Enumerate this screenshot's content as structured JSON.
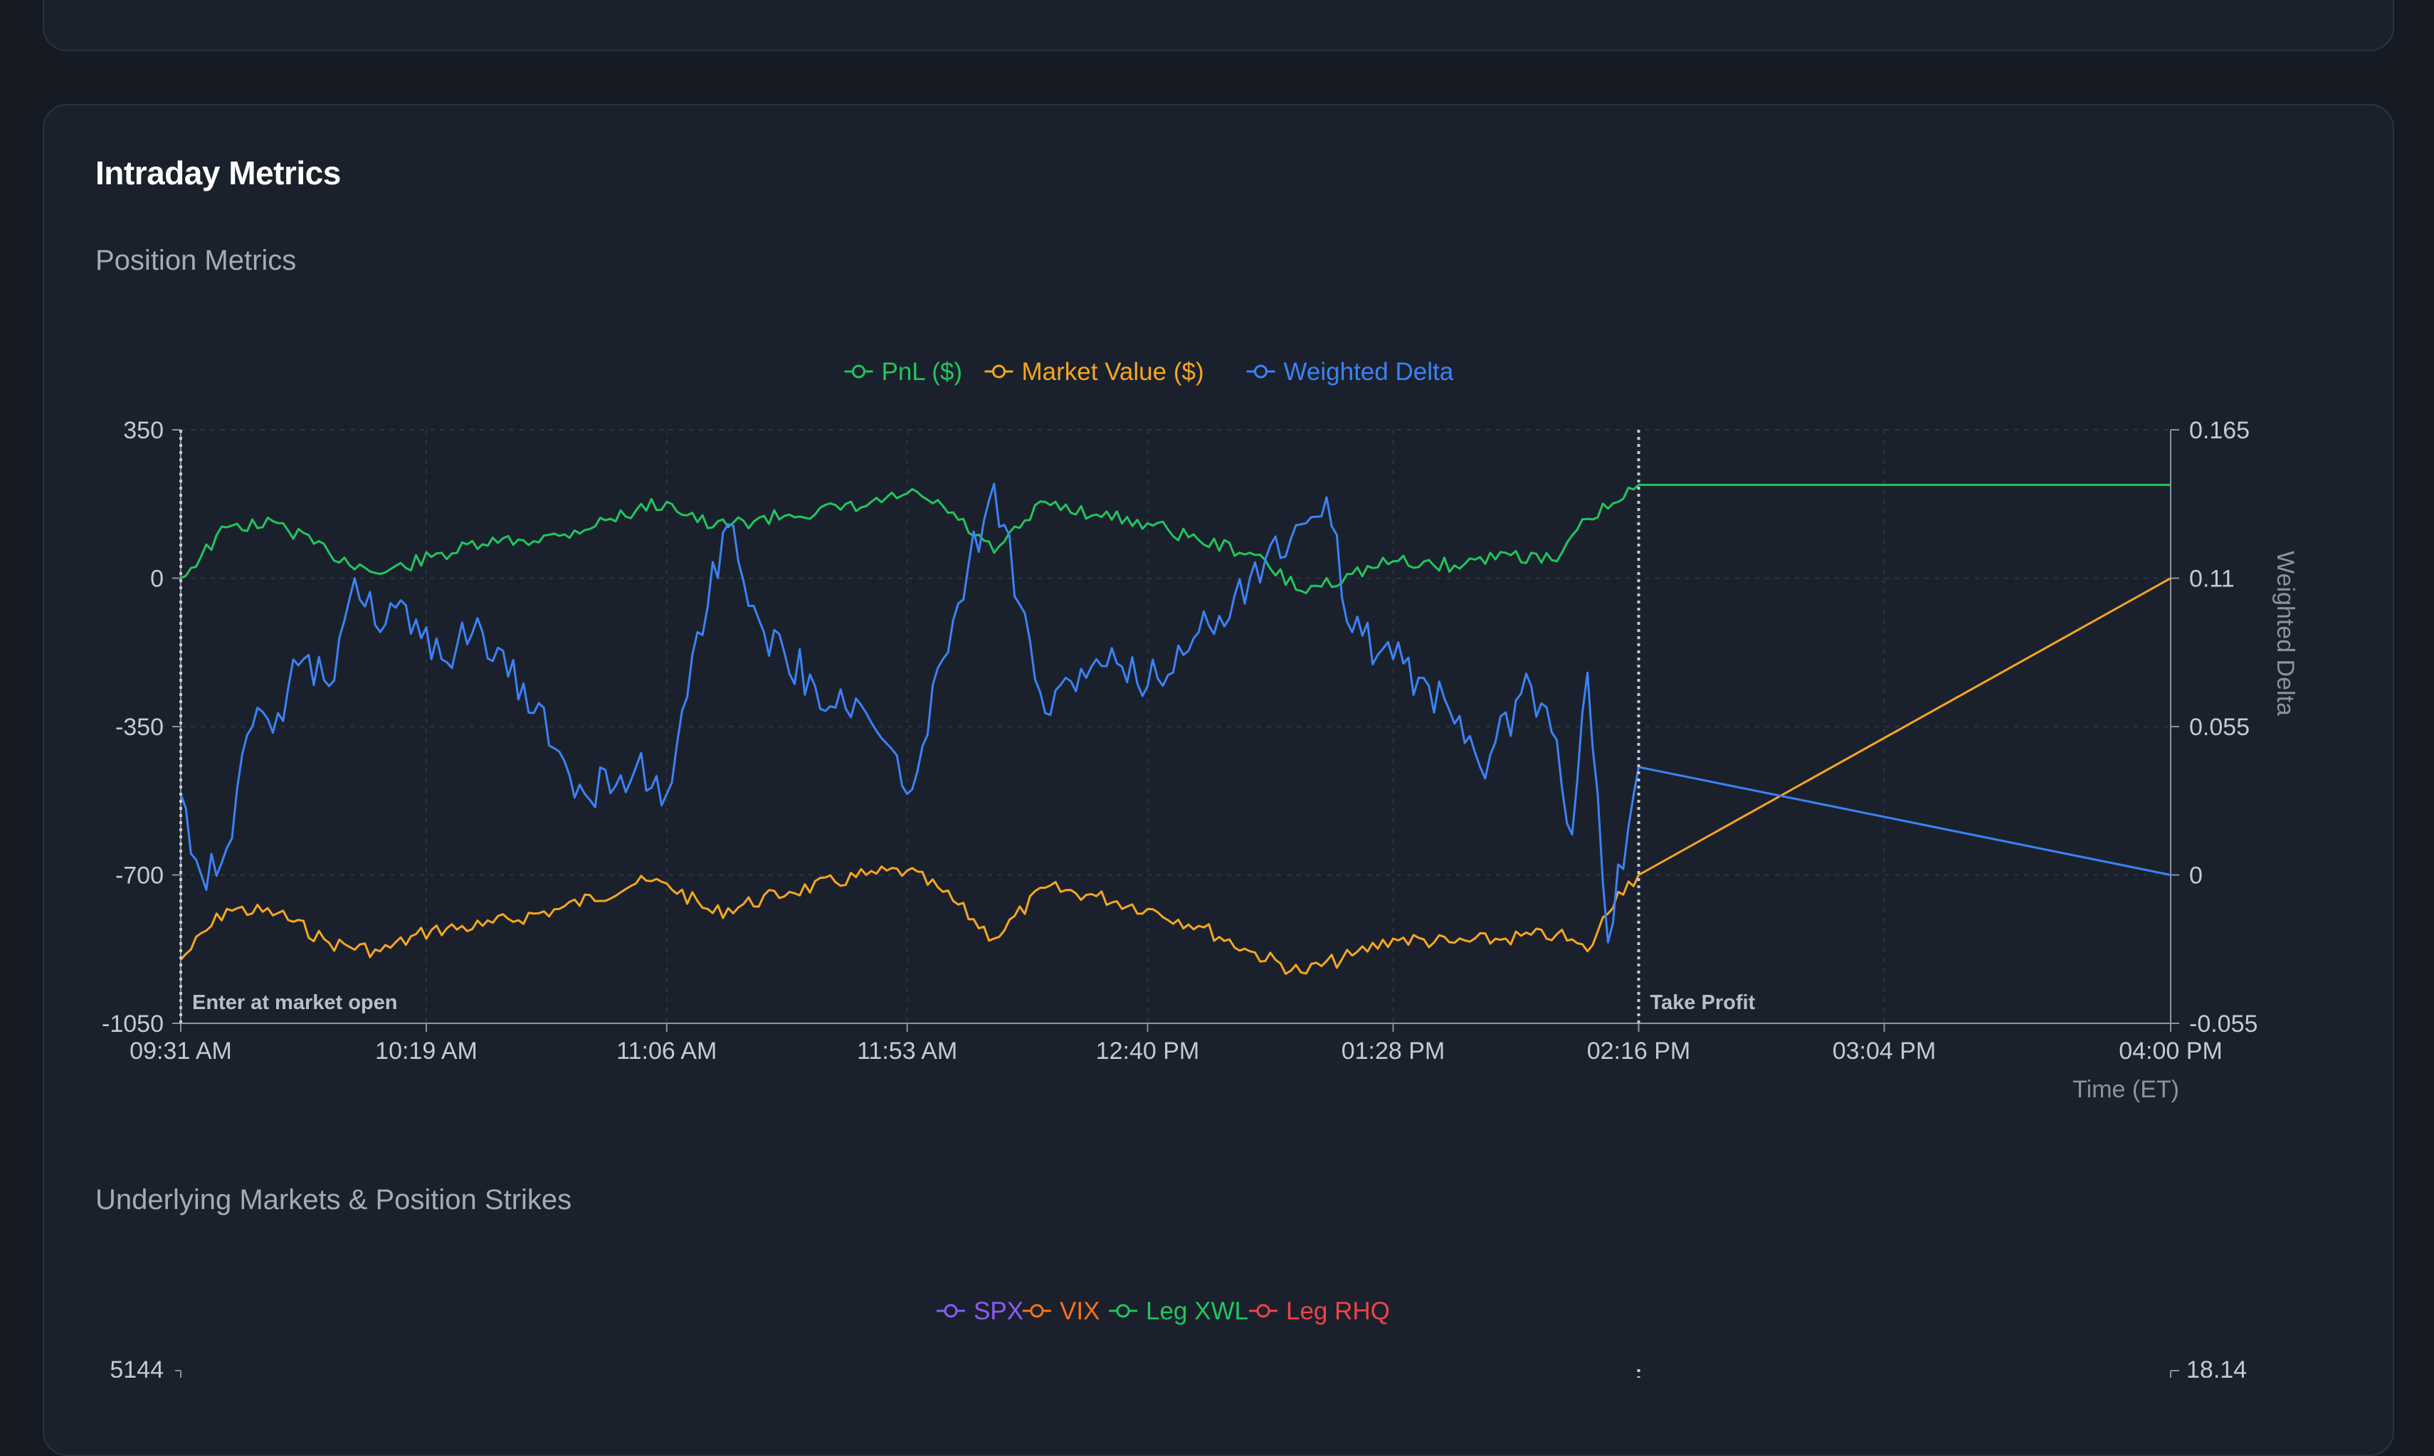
{
  "card": {
    "title": "Intraday Metrics",
    "section1": "Position Metrics",
    "section2": "Underlying Markets & Position Strikes"
  },
  "colors": {
    "pnl": "#22c55e",
    "market_value": "#f5a623",
    "weighted_delta": "#3b82f6",
    "spx": "#8b5cf6",
    "vix": "#f97316",
    "leg_xwl": "#22c55e",
    "leg_rhq": "#ef4444"
  },
  "chart_data": [
    {
      "type": "line",
      "xlabel": "Time (ET)",
      "y2label": "Weighted Delta",
      "x_ticks": [
        "09:31 AM",
        "10:19 AM",
        "11:06 AM",
        "11:53 AM",
        "12:40 PM",
        "01:28 PM",
        "02:16 PM",
        "03:04 PM",
        "04:00 PM"
      ],
      "y_ticks": [
        "350",
        "0",
        "-350",
        "-700",
        "-1050"
      ],
      "ylim": [
        -1050,
        350
      ],
      "y2_ticks": [
        "0.165",
        "0.11",
        "0.055",
        "0",
        "-0.055"
      ],
      "y2lim": [
        -0.055,
        0.165
      ],
      "legend": [
        "PnL ($)",
        "Market Value ($)",
        "Weighted Delta"
      ],
      "legend_position": "top-center",
      "grid": true,
      "annotations": [
        {
          "label": "Enter at market open",
          "x": "09:31 AM"
        },
        {
          "label": "Take Profit",
          "x": "02:16 PM"
        }
      ],
      "series": [
        {
          "name": "PnL ($)",
          "axis": "left",
          "x": [
            "09:31",
            "09:40",
            "09:50",
            "10:00",
            "10:10",
            "10:20",
            "10:30",
            "10:45",
            "11:00",
            "11:06",
            "11:15",
            "11:30",
            "11:45",
            "11:53",
            "12:00",
            "12:10",
            "12:20",
            "12:30",
            "12:40",
            "12:50",
            "13:00",
            "13:10",
            "13:20",
            "13:28",
            "13:40",
            "13:50",
            "14:00",
            "14:06",
            "14:12",
            "14:16",
            "16:00"
          ],
          "values": [
            0,
            120,
            130,
            60,
            10,
            50,
            80,
            100,
            160,
            180,
            120,
            150,
            170,
            200,
            170,
            60,
            180,
            150,
            130,
            90,
            60,
            -30,
            10,
            40,
            30,
            60,
            40,
            140,
            180,
            220,
            220
          ]
        },
        {
          "name": "Market Value ($)",
          "axis": "left",
          "x": [
            "09:31",
            "09:40",
            "09:50",
            "10:00",
            "10:10",
            "10:20",
            "10:30",
            "10:45",
            "11:00",
            "11:06",
            "11:15",
            "11:30",
            "11:45",
            "11:53",
            "12:00",
            "12:10",
            "12:20",
            "12:30",
            "12:40",
            "12:50",
            "13:00",
            "13:10",
            "13:20",
            "13:28",
            "13:40",
            "13:50",
            "14:00",
            "14:06",
            "14:12",
            "14:16",
            "16:00"
          ],
          "values": [
            -900,
            -780,
            -790,
            -860,
            -880,
            -830,
            -820,
            -780,
            -720,
            -720,
            -790,
            -740,
            -700,
            -690,
            -740,
            -850,
            -730,
            -750,
            -780,
            -820,
            -880,
            -930,
            -890,
            -850,
            -860,
            -850,
            -840,
            -880,
            -740,
            -700,
            0
          ]
        },
        {
          "name": "Weighted Delta",
          "axis": "right",
          "x": [
            "09:31",
            "09:35",
            "09:40",
            "09:45",
            "09:50",
            "09:55",
            "10:00",
            "10:05",
            "10:10",
            "10:15",
            "10:20",
            "10:25",
            "10:30",
            "10:40",
            "10:50",
            "11:00",
            "11:06",
            "11:12",
            "11:18",
            "11:25",
            "11:35",
            "11:45",
            "11:53",
            "12:00",
            "12:05",
            "12:10",
            "12:20",
            "12:30",
            "12:40",
            "12:50",
            "13:00",
            "13:10",
            "13:15",
            "13:20",
            "13:28",
            "13:35",
            "13:45",
            "13:55",
            "14:00",
            "14:03",
            "14:06",
            "14:10",
            "14:16",
            "16:00"
          ],
          "values": [
            0.03,
            0.0,
            0.01,
            0.055,
            0.06,
            0.08,
            0.07,
            0.11,
            0.09,
            0.1,
            0.08,
            0.085,
            0.09,
            0.06,
            0.03,
            0.04,
            0.03,
            0.09,
            0.13,
            0.09,
            0.07,
            0.06,
            0.03,
            0.08,
            0.115,
            0.145,
            0.06,
            0.08,
            0.07,
            0.09,
            0.11,
            0.13,
            0.14,
            0.09,
            0.08,
            0.07,
            0.04,
            0.07,
            0.05,
            0.015,
            0.075,
            -0.025,
            0.04,
            0.0
          ]
        }
      ]
    },
    {
      "type": "line",
      "legend": [
        "SPX",
        "VIX",
        "Leg XWL",
        "Leg RHQ"
      ],
      "legend_position": "top-center",
      "y_ticks": [
        "5144"
      ],
      "y2_ticks": [
        "18.14"
      ]
    }
  ]
}
